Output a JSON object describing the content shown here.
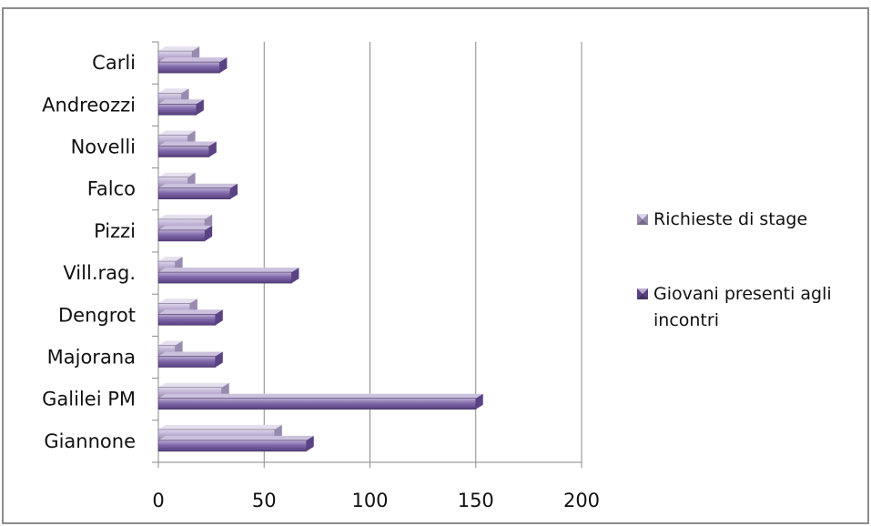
{
  "chart_data": {
    "type": "bar",
    "orientation": "horizontal",
    "style": "3d-bevel",
    "categories": [
      "Giannone",
      "Galilei PM",
      "Majorana",
      "Dengrot",
      "Vill.rag.",
      "Pizzi",
      "Falco",
      "Novelli ",
      "Andreozzi",
      "Carli"
    ],
    "series": [
      {
        "name": "Richieste di stage",
        "color": "#b4a3ce",
        "values": [
          55,
          30,
          8,
          15,
          8,
          22,
          14,
          14,
          11,
          16
        ]
      },
      {
        "name": "Giovani presenti agli incontri",
        "color": "#6a4e9b",
        "values": [
          70,
          150,
          27,
          27,
          63,
          22,
          34,
          24,
          18,
          29
        ]
      }
    ],
    "x_ticks": [
      "0",
      "50",
      "100",
      "150",
      "200"
    ],
    "xlim": [
      0,
      200
    ],
    "grid": "vertical",
    "legend_position": "right",
    "title": "",
    "xlabel": "",
    "ylabel": ""
  }
}
